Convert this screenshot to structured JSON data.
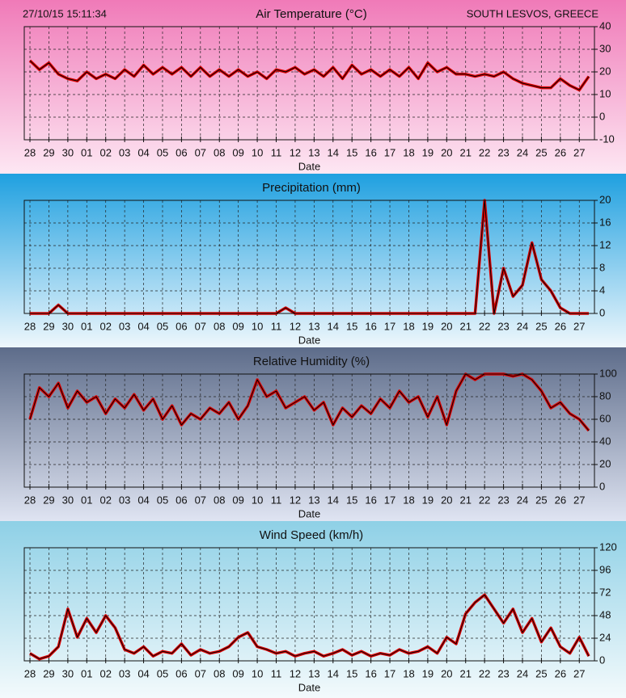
{
  "chart_data": [
    {
      "type": "line",
      "title": "Air Temperature  (°C)",
      "xlabel": "Date",
      "annotations": [
        "27/10/15 15:11:34",
        "SOUTH LESVOS, GREECE"
      ],
      "grid": true,
      "x": [
        0,
        0.5,
        1,
        1.5,
        2,
        2.5,
        3,
        3.5,
        4,
        4.5,
        5,
        5.5,
        6,
        6.5,
        7,
        7.5,
        8,
        8.5,
        9,
        9.5,
        10,
        10.5,
        11,
        11.5,
        12,
        12.5,
        13,
        13.5,
        14,
        14.5,
        15,
        15.5,
        16,
        16.5,
        17,
        17.5,
        18,
        18.5,
        19,
        19.5,
        20,
        20.5,
        21,
        21.5,
        22,
        22.5,
        23,
        23.5,
        24,
        24.5,
        25,
        25.5,
        26,
        26.5,
        27,
        27.5,
        28,
        28.5,
        29,
        29.5
      ],
      "xlim": [
        -0.3,
        29.8
      ],
      "xticks": [
        {
          "value": 0,
          "label": "28"
        },
        {
          "value": 1,
          "label": "29"
        },
        {
          "value": 2,
          "label": "30"
        },
        {
          "value": 3,
          "label": "01"
        },
        {
          "value": 4,
          "label": "02"
        },
        {
          "value": 5,
          "label": "03"
        },
        {
          "value": 6,
          "label": "04"
        },
        {
          "value": 7,
          "label": "05"
        },
        {
          "value": 8,
          "label": "06"
        },
        {
          "value": 9,
          "label": "07"
        },
        {
          "value": 10,
          "label": "08"
        },
        {
          "value": 11,
          "label": "09"
        },
        {
          "value": 12,
          "label": "10"
        },
        {
          "value": 13,
          "label": "11"
        },
        {
          "value": 14,
          "label": "12"
        },
        {
          "value": 15,
          "label": "13"
        },
        {
          "value": 16,
          "label": "14"
        },
        {
          "value": 17,
          "label": "15"
        },
        {
          "value": 18,
          "label": "16"
        },
        {
          "value": 19,
          "label": "17"
        },
        {
          "value": 20,
          "label": "18"
        },
        {
          "value": 21,
          "label": "19"
        },
        {
          "value": 22,
          "label": "20"
        },
        {
          "value": 23,
          "label": "21"
        },
        {
          "value": 24,
          "label": "22"
        },
        {
          "value": 25,
          "label": "23"
        },
        {
          "value": 26,
          "label": "24"
        },
        {
          "value": 27,
          "label": "25"
        },
        {
          "value": 28,
          "label": "26"
        },
        {
          "value": 29,
          "label": "27"
        }
      ],
      "ylim": [
        -10,
        40
      ],
      "yticks": [
        -10,
        0,
        10,
        20,
        30,
        40
      ],
      "series": [
        {
          "color": "#e00000",
          "values": [
            25,
            21,
            24,
            19,
            17,
            16,
            20,
            17,
            19,
            17,
            21,
            18,
            23,
            19,
            22,
            19,
            22,
            18,
            22,
            18,
            21,
            18,
            21,
            18,
            20,
            17,
            21,
            20,
            22,
            19,
            21,
            18,
            22,
            17,
            23,
            19,
            21,
            18,
            21,
            18,
            22,
            17,
            24,
            20,
            22,
            19,
            19,
            18,
            19,
            18,
            20,
            17,
            15,
            14,
            13,
            13,
            17,
            14,
            12,
            18
          ]
        }
      ]
    },
    {
      "type": "line",
      "title": "Precipitation (mm)",
      "xlabel": "Date",
      "grid": true,
      "x": [
        0,
        0.5,
        1,
        1.5,
        2,
        2.5,
        3,
        3.5,
        4,
        4.5,
        5,
        5.5,
        6,
        6.5,
        7,
        7.5,
        8,
        8.5,
        9,
        9.5,
        10,
        10.5,
        11,
        11.5,
        12,
        12.5,
        13,
        13.5,
        14,
        14.5,
        15,
        15.5,
        16,
        16.5,
        17,
        17.5,
        18,
        18.5,
        19,
        19.5,
        20,
        20.5,
        21,
        21.5,
        22,
        22.5,
        23,
        23.5,
        24,
        24.5,
        25,
        25.5,
        26,
        26.5,
        27,
        27.5,
        28,
        28.5,
        29,
        29.5
      ],
      "xlim": [
        -0.3,
        29.8
      ],
      "xticks": [
        {
          "value": 0,
          "label": "28"
        },
        {
          "value": 1,
          "label": "29"
        },
        {
          "value": 2,
          "label": "30"
        },
        {
          "value": 3,
          "label": "01"
        },
        {
          "value": 4,
          "label": "02"
        },
        {
          "value": 5,
          "label": "03"
        },
        {
          "value": 6,
          "label": "04"
        },
        {
          "value": 7,
          "label": "05"
        },
        {
          "value": 8,
          "label": "06"
        },
        {
          "value": 9,
          "label": "07"
        },
        {
          "value": 10,
          "label": "08"
        },
        {
          "value": 11,
          "label": "09"
        },
        {
          "value": 12,
          "label": "10"
        },
        {
          "value": 13,
          "label": "11"
        },
        {
          "value": 14,
          "label": "12"
        },
        {
          "value": 15,
          "label": "13"
        },
        {
          "value": 16,
          "label": "14"
        },
        {
          "value": 17,
          "label": "15"
        },
        {
          "value": 18,
          "label": "16"
        },
        {
          "value": 19,
          "label": "17"
        },
        {
          "value": 20,
          "label": "18"
        },
        {
          "value": 21,
          "label": "19"
        },
        {
          "value": 22,
          "label": "20"
        },
        {
          "value": 23,
          "label": "21"
        },
        {
          "value": 24,
          "label": "22"
        },
        {
          "value": 25,
          "label": "23"
        },
        {
          "value": 26,
          "label": "24"
        },
        {
          "value": 27,
          "label": "25"
        },
        {
          "value": 28,
          "label": "26"
        },
        {
          "value": 29,
          "label": "27"
        }
      ],
      "ylim": [
        0,
        20
      ],
      "yticks": [
        0,
        4,
        8,
        12,
        16,
        20
      ],
      "series": [
        {
          "color": "#e00000",
          "values": [
            0,
            0,
            0,
            1.5,
            0,
            0,
            0,
            0,
            0,
            0,
            0,
            0,
            0,
            0,
            0,
            0,
            0,
            0,
            0,
            0,
            0,
            0,
            0,
            0,
            0,
            0,
            0,
            1,
            0,
            0,
            0,
            0,
            0,
            0,
            0,
            0,
            0,
            0,
            0,
            0,
            0,
            0,
            0,
            0,
            0,
            0,
            0,
            0,
            20,
            0,
            8,
            3,
            5,
            12.5,
            6,
            4,
            1,
            0,
            0,
            0
          ]
        }
      ]
    },
    {
      "type": "line",
      "title": "Relative Humidity (%)",
      "xlabel": "Date",
      "grid": true,
      "x": [
        0,
        0.5,
        1,
        1.5,
        2,
        2.5,
        3,
        3.5,
        4,
        4.5,
        5,
        5.5,
        6,
        6.5,
        7,
        7.5,
        8,
        8.5,
        9,
        9.5,
        10,
        10.5,
        11,
        11.5,
        12,
        12.5,
        13,
        13.5,
        14,
        14.5,
        15,
        15.5,
        16,
        16.5,
        17,
        17.5,
        18,
        18.5,
        19,
        19.5,
        20,
        20.5,
        21,
        21.5,
        22,
        22.5,
        23,
        23.5,
        24,
        24.5,
        25,
        25.5,
        26,
        26.5,
        27,
        27.5,
        28,
        28.5,
        29,
        29.5
      ],
      "xlim": [
        -0.3,
        29.8
      ],
      "xticks": [
        {
          "value": 0,
          "label": "28"
        },
        {
          "value": 1,
          "label": "29"
        },
        {
          "value": 2,
          "label": "30"
        },
        {
          "value": 3,
          "label": "01"
        },
        {
          "value": 4,
          "label": "02"
        },
        {
          "value": 5,
          "label": "03"
        },
        {
          "value": 6,
          "label": "04"
        },
        {
          "value": 7,
          "label": "05"
        },
        {
          "value": 8,
          "label": "06"
        },
        {
          "value": 9,
          "label": "07"
        },
        {
          "value": 10,
          "label": "08"
        },
        {
          "value": 11,
          "label": "09"
        },
        {
          "value": 12,
          "label": "10"
        },
        {
          "value": 13,
          "label": "11"
        },
        {
          "value": 14,
          "label": "12"
        },
        {
          "value": 15,
          "label": "13"
        },
        {
          "value": 16,
          "label": "14"
        },
        {
          "value": 17,
          "label": "15"
        },
        {
          "value": 18,
          "label": "16"
        },
        {
          "value": 19,
          "label": "17"
        },
        {
          "value": 20,
          "label": "18"
        },
        {
          "value": 21,
          "label": "19"
        },
        {
          "value": 22,
          "label": "20"
        },
        {
          "value": 23,
          "label": "21"
        },
        {
          "value": 24,
          "label": "22"
        },
        {
          "value": 25,
          "label": "23"
        },
        {
          "value": 26,
          "label": "24"
        },
        {
          "value": 27,
          "label": "25"
        },
        {
          "value": 28,
          "label": "26"
        },
        {
          "value": 29,
          "label": "27"
        }
      ],
      "ylim": [
        0,
        100
      ],
      "yticks": [
        0,
        20,
        40,
        60,
        80,
        100
      ],
      "series": [
        {
          "color": "#e00000",
          "values": [
            60,
            88,
            80,
            92,
            70,
            85,
            75,
            80,
            65,
            78,
            70,
            82,
            68,
            78,
            60,
            72,
            55,
            65,
            60,
            70,
            65,
            75,
            60,
            72,
            95,
            80,
            85,
            70,
            75,
            80,
            68,
            75,
            55,
            70,
            62,
            72,
            65,
            78,
            70,
            85,
            75,
            80,
            62,
            80,
            55,
            85,
            100,
            95,
            100,
            100,
            100,
            98,
            100,
            95,
            85,
            70,
            75,
            65,
            60,
            50
          ]
        }
      ]
    },
    {
      "type": "line",
      "title": "Wind Speed (km/h)",
      "xlabel": "Date",
      "grid": true,
      "x": [
        0,
        0.5,
        1,
        1.5,
        2,
        2.5,
        3,
        3.5,
        4,
        4.5,
        5,
        5.5,
        6,
        6.5,
        7,
        7.5,
        8,
        8.5,
        9,
        9.5,
        10,
        10.5,
        11,
        11.5,
        12,
        12.5,
        13,
        13.5,
        14,
        14.5,
        15,
        15.5,
        16,
        16.5,
        17,
        17.5,
        18,
        18.5,
        19,
        19.5,
        20,
        20.5,
        21,
        21.5,
        22,
        22.5,
        23,
        23.5,
        24,
        24.5,
        25,
        25.5,
        26,
        26.5,
        27,
        27.5,
        28,
        28.5,
        29,
        29.5
      ],
      "xlim": [
        -0.3,
        29.8
      ],
      "xticks": [
        {
          "value": 0,
          "label": "28"
        },
        {
          "value": 1,
          "label": "29"
        },
        {
          "value": 2,
          "label": "30"
        },
        {
          "value": 3,
          "label": "01"
        },
        {
          "value": 4,
          "label": "02"
        },
        {
          "value": 5,
          "label": "03"
        },
        {
          "value": 6,
          "label": "04"
        },
        {
          "value": 7,
          "label": "05"
        },
        {
          "value": 8,
          "label": "06"
        },
        {
          "value": 9,
          "label": "07"
        },
        {
          "value": 10,
          "label": "08"
        },
        {
          "value": 11,
          "label": "09"
        },
        {
          "value": 12,
          "label": "10"
        },
        {
          "value": 13,
          "label": "11"
        },
        {
          "value": 14,
          "label": "12"
        },
        {
          "value": 15,
          "label": "13"
        },
        {
          "value": 16,
          "label": "14"
        },
        {
          "value": 17,
          "label": "15"
        },
        {
          "value": 18,
          "label": "16"
        },
        {
          "value": 19,
          "label": "17"
        },
        {
          "value": 20,
          "label": "18"
        },
        {
          "value": 21,
          "label": "19"
        },
        {
          "value": 22,
          "label": "20"
        },
        {
          "value": 23,
          "label": "21"
        },
        {
          "value": 24,
          "label": "22"
        },
        {
          "value": 25,
          "label": "23"
        },
        {
          "value": 26,
          "label": "24"
        },
        {
          "value": 27,
          "label": "25"
        },
        {
          "value": 28,
          "label": "26"
        },
        {
          "value": 29,
          "label": "27"
        }
      ],
      "ylim": [
        0,
        120
      ],
      "yticks": [
        0,
        24,
        48,
        72,
        96,
        120
      ],
      "series": [
        {
          "color": "#e00000",
          "values": [
            8,
            2,
            5,
            15,
            55,
            25,
            45,
            30,
            48,
            35,
            12,
            8,
            15,
            5,
            10,
            8,
            18,
            6,
            12,
            8,
            10,
            15,
            25,
            30,
            15,
            12,
            8,
            10,
            5,
            8,
            10,
            5,
            8,
            12,
            6,
            10,
            5,
            8,
            6,
            12,
            8,
            10,
            15,
            8,
            25,
            18,
            50,
            62,
            70,
            55,
            40,
            55,
            30,
            45,
            20,
            35,
            15,
            8,
            25,
            5
          ]
        }
      ]
    }
  ]
}
